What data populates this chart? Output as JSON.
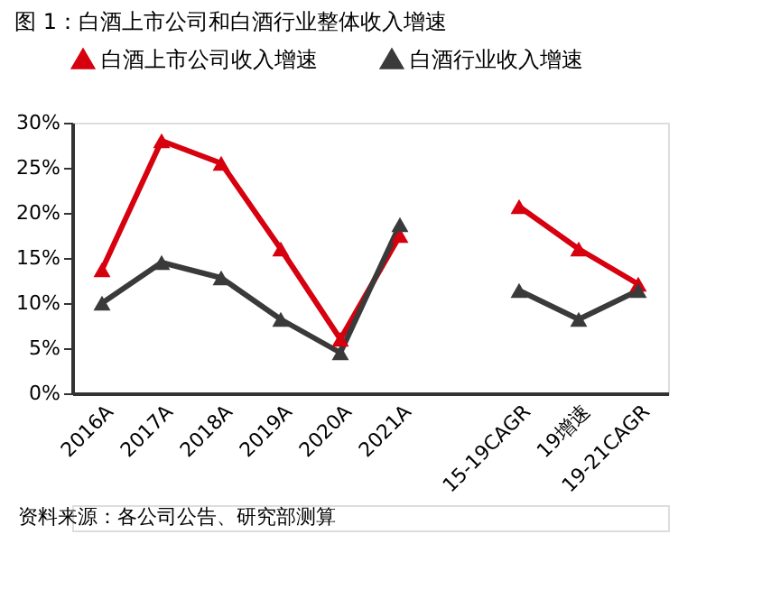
{
  "chart_data": {
    "type": "line",
    "title": "图 1：白酒上市公司和白酒行业整体收入增速",
    "categories": [
      "2016A",
      "2017A",
      "2018A",
      "2019A",
      "2020A",
      "2021A",
      null,
      "15-19CAGR",
      "19增速",
      "19-21CAGR"
    ],
    "series": [
      {
        "name": "白酒上市公司收入增速",
        "color": "#d7000f",
        "values": [
          13.7,
          28,
          25.5,
          16,
          6,
          17.5,
          null,
          20.7,
          16,
          12.1
        ]
      },
      {
        "name": "白酒行业收入增速",
        "color": "#3a3a3a",
        "values": [
          10,
          14.5,
          12.8,
          8.2,
          4.5,
          18.7,
          null,
          11.4,
          8.2,
          11.4
        ]
      }
    ],
    "ylim": [
      0,
      30
    ],
    "yticks": [
      {
        "value": 0,
        "label": "0%"
      },
      {
        "value": 5,
        "label": "5%"
      },
      {
        "value": 10,
        "label": "10%"
      },
      {
        "value": 15,
        "label": "15%"
      },
      {
        "value": 20,
        "label": "20%"
      },
      {
        "value": 25,
        "label": "25%"
      },
      {
        "value": 30,
        "label": "30%"
      }
    ],
    "grid": false,
    "legend": "top",
    "marker": "triangle",
    "line_style": "solid",
    "annotations": [
      "资料来源：各公司公告、研究部测算"
    ]
  }
}
